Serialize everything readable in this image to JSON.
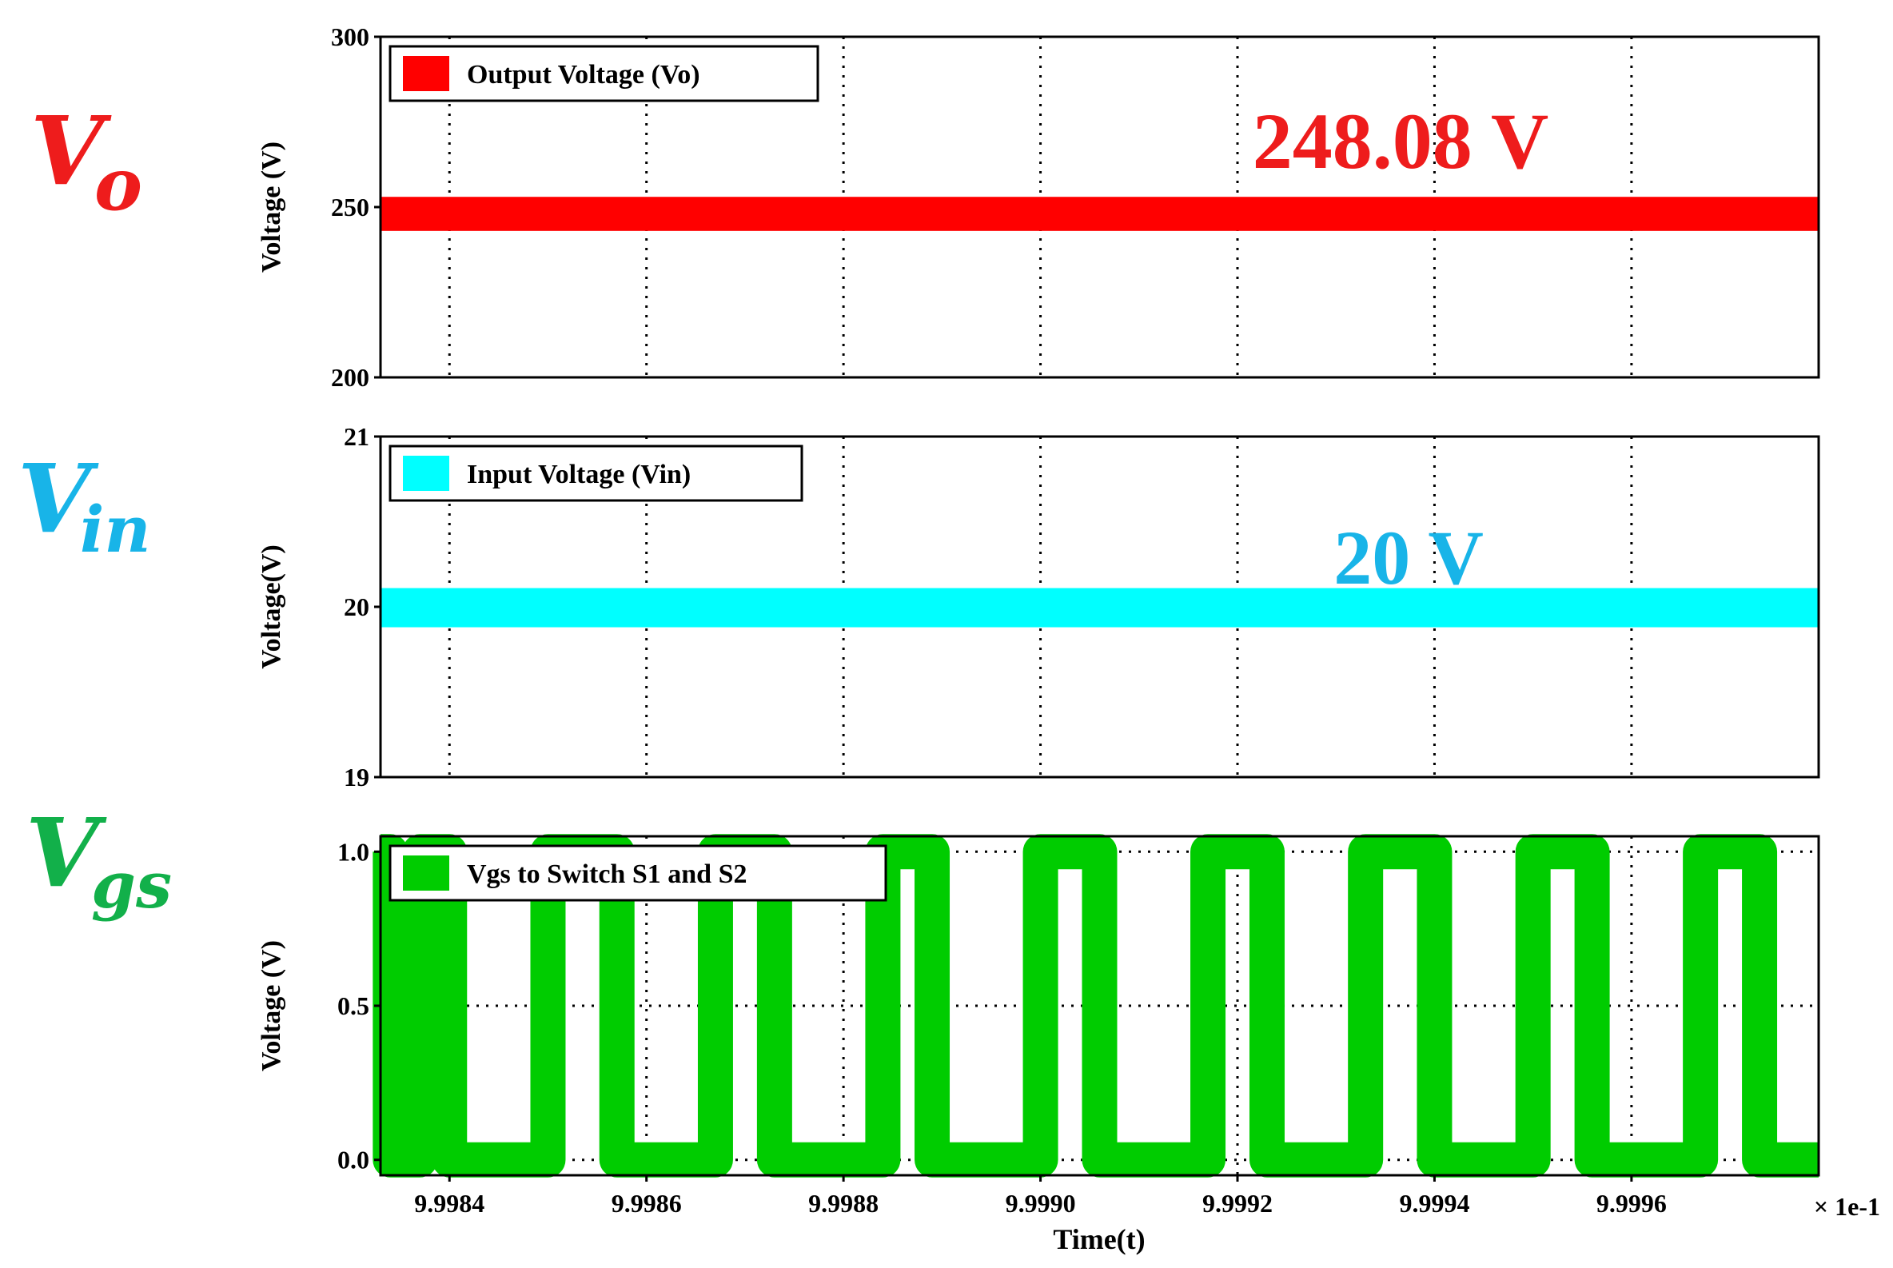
{
  "side_labels": [
    {
      "main": "V",
      "sub": "o",
      "color": "#ee1c1c"
    },
    {
      "main": "V",
      "sub": "in",
      "color": "#18b4e8"
    },
    {
      "main": "V",
      "sub": "gs",
      "color": "#12b04a"
    }
  ],
  "x_axis": {
    "label": "Time(t)",
    "tick_values": [
      9.9984,
      9.9986,
      9.9988,
      9.999,
      9.9992,
      9.9994,
      9.9996
    ],
    "tick_labels": [
      "9.9984",
      "9.9986",
      "9.9988",
      "9.9990",
      "9.9992",
      "9.9994",
      "9.9996"
    ],
    "multiplier": "× 1e-1",
    "range": [
      9.99833,
      9.99979
    ]
  },
  "chart_data": [
    {
      "type": "line",
      "ylabel": "Voltage (V)",
      "ylim": [
        200,
        300
      ],
      "yticks": [
        200,
        250,
        300
      ],
      "ytick_labels": [
        "200",
        "250",
        "300"
      ],
      "legend": "Output Voltage (Vo)",
      "legend_position": "top-left",
      "color": "#ff0000",
      "annotation": "248.08 V",
      "annotation_color": "#ee1c1c",
      "grid": true,
      "series": [
        {
          "name": "Output Voltage (Vo)",
          "x": [
            9.99833,
            9.99979
          ],
          "y_center": [
            248.08,
            248.08
          ],
          "band": [
            243,
            253
          ]
        }
      ]
    },
    {
      "type": "line",
      "ylabel": "Voltage(V)",
      "ylim": [
        19,
        21
      ],
      "yticks": [
        19,
        20,
        21
      ],
      "ytick_labels": [
        "19",
        "20",
        "21"
      ],
      "legend": "Input Voltage (Vin)",
      "legend_position": "top-left",
      "color": "#00ffff",
      "annotation": "20 V",
      "annotation_color": "#18b4e8",
      "grid": true,
      "series": [
        {
          "name": "Input Voltage (Vin)",
          "x": [
            9.99833,
            9.99979
          ],
          "y_center": [
            20.0,
            20.0
          ],
          "band": [
            19.88,
            20.11
          ]
        }
      ]
    },
    {
      "type": "line",
      "ylabel": "Voltage (V)",
      "ylim": [
        -0.05,
        1.05
      ],
      "yticks": [
        0.0,
        0.5,
        1.0
      ],
      "ytick_labels": [
        "0.0",
        "0.5",
        "1.0"
      ],
      "legend": "Vgs to Switch S1 and S2",
      "legend_position": "top-left",
      "color": "#00cc00",
      "grid": true,
      "series": [
        {
          "name": "Vgs to Switch S1 and S2",
          "low": 0.0,
          "high": 1.0,
          "high_intervals": [
            [
              9.99833,
              9.99834
            ],
            [
              9.99837,
              9.9984
            ],
            [
              9.9985,
              9.99857
            ],
            [
              9.99867,
              9.99873
            ],
            [
              9.99884,
              9.99889
            ],
            [
              9.999,
              9.99906
            ],
            [
              9.99917,
              9.99923
            ],
            [
              9.99933,
              9.9994
            ],
            [
              9.9995,
              9.99956
            ],
            [
              9.99967,
              9.99973
            ]
          ]
        }
      ]
    }
  ]
}
